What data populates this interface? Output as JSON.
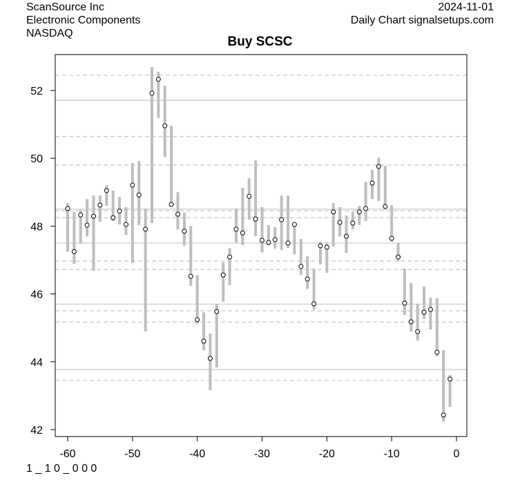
{
  "header": {
    "company": "ScanSource Inc",
    "sector": "Electronic Components",
    "exchange": "NASDAQ",
    "date": "2024-11-01",
    "source": "Daily Chart signalsetups.com",
    "footer": "1 _ 1 0 _ 0 0 0"
  },
  "chart_data": {
    "type": "range-bar",
    "title": "Buy SCSC",
    "xlabel": "",
    "ylabel": "",
    "xlim": [
      -62,
      1.5
    ],
    "ylim": [
      41.8,
      52.95
    ],
    "x_ticks": [
      -60,
      -50,
      -40,
      -30,
      -20,
      -10,
      0
    ],
    "y_ticks": [
      42,
      44,
      46,
      48,
      50,
      52
    ],
    "colors": {
      "bar": "#bebebe",
      "point": "#000000",
      "line": "#c8c8c8"
    },
    "solid_levels": [
      51.71,
      48.5,
      47.5,
      45.7,
      43.77
    ],
    "dashed_levels": [
      52.45,
      50.64,
      49.8,
      48.45,
      48.25,
      46.97,
      46.72,
      45.5,
      45.17,
      43.45
    ],
    "x": [
      -60,
      -59,
      -58,
      -57,
      -56,
      -55,
      -54,
      -53,
      -52,
      -51,
      -50,
      -49,
      -48,
      -47,
      -46,
      -45,
      -44,
      -43,
      -42,
      -41,
      -40,
      -39,
      -38,
      -37,
      -36,
      -35,
      -34,
      -33,
      -32,
      -31,
      -30,
      -29,
      -28,
      -27,
      -26,
      -25,
      -24,
      -23,
      -22,
      -21,
      -20,
      -19,
      -18,
      -17,
      -16,
      -15,
      -14,
      -13,
      -12,
      -11,
      -10,
      -9,
      -8,
      -7,
      -6,
      -5,
      -4,
      -3,
      -2,
      -1
    ],
    "close": [
      48.52,
      47.25,
      48.33,
      48.03,
      48.29,
      48.62,
      49.05,
      48.25,
      48.44,
      48.05,
      49.21,
      48.92,
      47.91,
      51.92,
      52.33,
      50.96,
      48.64,
      48.35,
      47.85,
      46.52,
      45.24,
      44.61,
      44.1,
      45.48,
      46.56,
      47.09,
      47.91,
      47.8,
      48.88,
      48.21,
      47.58,
      47.52,
      47.6,
      48.19,
      47.5,
      48.05,
      46.81,
      46.44,
      45.71,
      47.42,
      47.38,
      48.42,
      48.11,
      47.7,
      48.09,
      48.42,
      48.52,
      49.27,
      49.76,
      48.58,
      47.64,
      47.09,
      45.73,
      45.18,
      44.89,
      45.46,
      45.54,
      44.28,
      42.43,
      43.49
    ],
    "high": [
      48.68,
      48.42,
      48.48,
      48.8,
      48.9,
      48.9,
      49.21,
      49.05,
      48.86,
      48.56,
      49.86,
      49.92,
      48.52,
      52.69,
      52.55,
      52.14,
      50.96,
      49.0,
      48.4,
      48.01,
      46.56,
      45.46,
      44.83,
      45.71,
      46.93,
      47.35,
      48.52,
      49.13,
      49.41,
      49.94,
      48.56,
      48.03,
      47.97,
      48.9,
      48.9,
      48.11,
      47.62,
      47.11,
      46.75,
      47.54,
      47.5,
      48.68,
      48.56,
      48.31,
      48.42,
      48.6,
      49.31,
      49.66,
      50.02,
      49.78,
      48.62,
      47.5,
      46.75,
      46.32,
      45.71,
      46.22,
      45.89,
      45.87,
      44.34,
      43.61
    ],
    "low": [
      47.25,
      46.89,
      47.48,
      47.7,
      46.68,
      48.13,
      48.6,
      48.15,
      48.05,
      47.74,
      46.91,
      48.03,
      44.89,
      48.09,
      51.19,
      50.04,
      48.64,
      47.9,
      47.42,
      46.24,
      45.12,
      44.34,
      43.16,
      43.83,
      45.77,
      46.26,
      47.52,
      47.44,
      48.19,
      47.7,
      47.23,
      47.44,
      47.34,
      47.3,
      47.36,
      47.17,
      46.56,
      46.15,
      45.54,
      46.87,
      46.62,
      47.4,
      47.7,
      47.21,
      47.91,
      48.03,
      48.15,
      48.8,
      48.74,
      48.6,
      47.54,
      46.97,
      45.38,
      44.89,
      44.63,
      45.26,
      44.95,
      44.16,
      42.24,
      42.67
    ]
  }
}
